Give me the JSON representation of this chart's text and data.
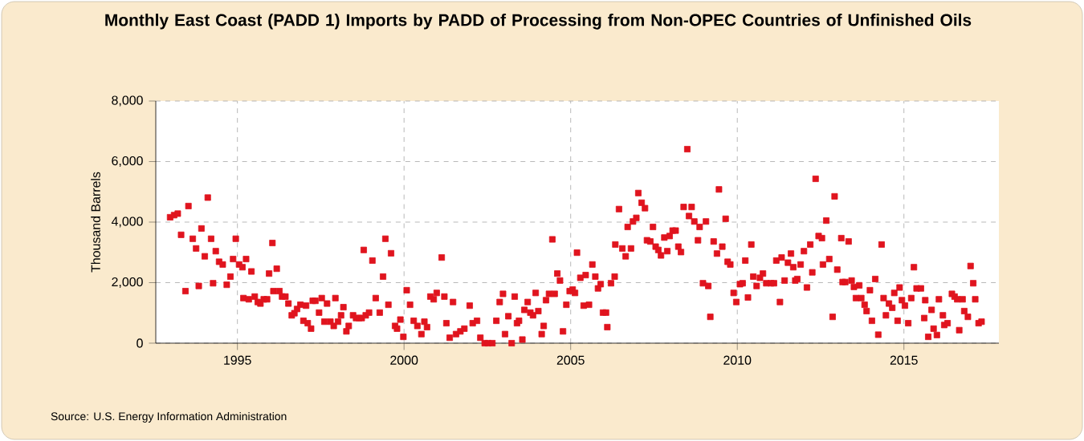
{
  "chart_data": {
    "type": "scatter",
    "title": "Monthly East Coast (PADD 1) Imports by PADD of Processing from Non-OPEC Countries of Unfinished Oils",
    "ylabel": "Thousand Barrels",
    "annotations": [
      "Source: U.S. Energy Information Administration"
    ],
    "color": "#e0141e",
    "marker": "square",
    "grid": true,
    "xlim": [
      1992.55,
      2017.85
    ],
    "ylim": [
      0,
      8000
    ],
    "xticks": [
      1995,
      2000,
      2005,
      2010,
      2015
    ],
    "yticks": [
      {
        "value": 0,
        "label": "0"
      },
      {
        "value": 2000,
        "label": "2,000"
      },
      {
        "value": 4000,
        "label": "4,000"
      },
      {
        "value": 6000,
        "label": "6,000"
      },
      {
        "value": 8000,
        "label": "8,000"
      }
    ],
    "x": [
      1992.98,
      1993.1,
      1993.21,
      1993.31,
      1993.44,
      1993.53,
      1993.66,
      1993.76,
      1993.84,
      1993.92,
      1994.02,
      1994.11,
      1994.21,
      1994.27,
      1994.35,
      1994.45,
      1994.56,
      1994.68,
      1994.79,
      1994.87,
      1994.95,
      1995.05,
      1995.15,
      1995.18,
      1995.26,
      1995.34,
      1995.42,
      1995.52,
      1995.61,
      1995.69,
      1995.79,
      1995.89,
      1995.95,
      1996.05,
      1996.08,
      1996.18,
      1996.26,
      1996.34,
      1996.44,
      1996.53,
      1996.63,
      1996.71,
      1996.79,
      1996.89,
      1996.98,
      1997.06,
      1997.11,
      1997.21,
      1997.26,
      1997.34,
      1997.45,
      1997.53,
      1997.61,
      1997.69,
      1997.79,
      1997.89,
      1997.94,
      1998.02,
      1998.11,
      1998.18,
      1998.27,
      1998.34,
      1998.47,
      1998.56,
      1998.65,
      1998.73,
      1998.79,
      1998.85,
      1998.95,
      1999.05,
      1999.15,
      1999.27,
      1999.37,
      1999.44,
      1999.53,
      1999.61,
      1999.73,
      1999.79,
      1999.89,
      1999.98,
      2000.08,
      2000.18,
      2000.29,
      2000.4,
      2000.52,
      2000.61,
      2000.69,
      2000.79,
      2000.89,
      2000.98,
      2001.13,
      2001.21,
      2001.27,
      2001.37,
      2001.47,
      2001.56,
      2001.69,
      2001.81,
      2001.97,
      2002.06,
      2002.19,
      2002.29,
      2002.42,
      2002.52,
      2002.65,
      2002.77,
      2002.87,
      2002.97,
      2003.03,
      2003.13,
      2003.23,
      2003.32,
      2003.39,
      2003.45,
      2003.55,
      2003.61,
      2003.71,
      2003.79,
      2003.87,
      2003.95,
      2004.03,
      2004.13,
      2004.19,
      2004.26,
      2004.35,
      2004.45,
      2004.52,
      2004.6,
      2004.68,
      2004.77,
      2004.87,
      2004.97,
      2005.06,
      2005.13,
      2005.19,
      2005.29,
      2005.39,
      2005.45,
      2005.55,
      2005.65,
      2005.74,
      2005.82,
      2005.9,
      2005.97,
      2006.06,
      2006.1,
      2006.21,
      2006.32,
      2006.34,
      2006.45,
      2006.55,
      2006.65,
      2006.71,
      2006.81,
      2006.87,
      2006.97,
      2007.03,
      2007.13,
      2007.23,
      2007.29,
      2007.39,
      2007.47,
      2007.55,
      2007.63,
      2007.71,
      2007.81,
      2007.9,
      2007.97,
      2008.06,
      2008.15,
      2008.23,
      2008.31,
      2008.39,
      2008.5,
      2008.55,
      2008.63,
      2008.71,
      2008.82,
      2008.87,
      2008.97,
      2009.06,
      2009.13,
      2009.19,
      2009.29,
      2009.39,
      2009.45,
      2009.55,
      2009.65,
      2009.71,
      2009.79,
      2009.89,
      2009.97,
      2010.08,
      2010.16,
      2010.24,
      2010.32,
      2010.42,
      2010.48,
      2010.58,
      2010.68,
      2010.77,
      2010.87,
      2011.01,
      2011.1,
      2011.17,
      2011.28,
      2011.33,
      2011.42,
      2011.52,
      2011.61,
      2011.68,
      2011.74,
      2011.8,
      2011.9,
      2012.0,
      2012.09,
      2012.19,
      2012.25,
      2012.35,
      2012.44,
      2012.54,
      2012.57,
      2012.67,
      2012.76,
      2012.86,
      2012.92,
      2013.0,
      2013.12,
      2013.16,
      2013.24,
      2013.34,
      2013.43,
      2013.5,
      2013.56,
      2013.66,
      2013.72,
      2013.82,
      2013.88,
      2013.98,
      2014.04,
      2014.14,
      2014.23,
      2014.33,
      2014.39,
      2014.46,
      2014.55,
      2014.65,
      2014.71,
      2014.81,
      2014.87,
      2014.94,
      2015.03,
      2015.13,
      2015.22,
      2015.3,
      2015.38,
      2015.51,
      2015.61,
      2015.64,
      2015.73,
      2015.83,
      2015.89,
      2015.99,
      2016.05,
      2016.17,
      2016.21,
      2016.31,
      2016.44,
      2016.52,
      2016.6,
      2016.66,
      2016.76,
      2016.81,
      2016.92,
      2017.0,
      2017.08,
      2017.14,
      2017.24,
      2017.33
    ],
    "values": [
      4160,
      4230,
      4280,
      3580,
      1720,
      4530,
      3450,
      3130,
      1890,
      3790,
      2870,
      4810,
      3450,
      1980,
      3040,
      2690,
      2600,
      1930,
      2200,
      2780,
      3450,
      2600,
      2510,
      1490,
      2780,
      1450,
      2370,
      1540,
      1360,
      1310,
      1450,
      1450,
      2300,
      3310,
      1720,
      2460,
      1720,
      1540,
      1540,
      1310,
      920,
      990,
      1130,
      1270,
      740,
      1240,
      660,
      480,
      1400,
      1400,
      1010,
      1490,
      710,
      1310,
      710,
      570,
      1490,
      710,
      920,
      1190,
      390,
      570,
      920,
      830,
      830,
      830,
      3080,
      920,
      1010,
      2730,
      1490,
      1010,
      2200,
      3450,
      1270,
      2970,
      570,
      480,
      780,
      210,
      1750,
      1270,
      740,
      570,
      300,
      710,
      530,
      1540,
      1450,
      1660,
      2830,
      1540,
      660,
      180,
      1360,
      300,
      390,
      480,
      1240,
      660,
      740,
      180,
      0,
      0,
      0,
      740,
      1360,
      1630,
      300,
      890,
      0,
      1540,
      660,
      740,
      120,
      1100,
      1360,
      1010,
      920,
      1660,
      1060,
      300,
      570,
      1420,
      1630,
      3430,
      1630,
      2300,
      2070,
      390,
      1270,
      1720,
      1770,
      1660,
      2990,
      2160,
      1240,
      2250,
      1270,
      2600,
      2200,
      1810,
      1950,
      1010,
      1010,
      530,
      1980,
      2200,
      3260,
      4430,
      3130,
      2870,
      3840,
      3130,
      4020,
      4140,
      4960,
      4640,
      4460,
      3400,
      3360,
      3840,
      3190,
      3080,
      2900,
      3490,
      3040,
      3540,
      3720,
      3720,
      3190,
      3010,
      4500,
      6410,
      4200,
      4500,
      4020,
      3400,
      3840,
      1980,
      4020,
      1890,
      870,
      3360,
      2960,
      5080,
      3190,
      4110,
      2690,
      2600,
      1660,
      1360,
      1950,
      1980,
      2730,
      1510,
      3260,
      2200,
      1890,
      2160,
      2300,
      1980,
      1980,
      1980,
      2730,
      1360,
      2830,
      2070,
      2660,
      2960,
      2510,
      2070,
      2120,
      2600,
      3040,
      1840,
      3260,
      2340,
      5430,
      3540,
      3470,
      2600,
      4050,
      2780,
      870,
      4850,
      2430,
      3470,
      2020,
      2020,
      3360,
      2070,
      1860,
      1490,
      1910,
      1490,
      1270,
      1060,
      1750,
      740,
      2120,
      280,
      3260,
      1490,
      920,
      1310,
      1170,
      1660,
      740,
      1840,
      1420,
      1240,
      660,
      1490,
      2510,
      1810,
      1810,
      830,
      1420,
      210,
      1100,
      480,
      270,
      1450,
      920,
      600,
      660,
      1630,
      1540,
      1450,
      430,
      1450,
      1060,
      870,
      2550,
      1980,
      1450,
      660,
      710
    ]
  }
}
